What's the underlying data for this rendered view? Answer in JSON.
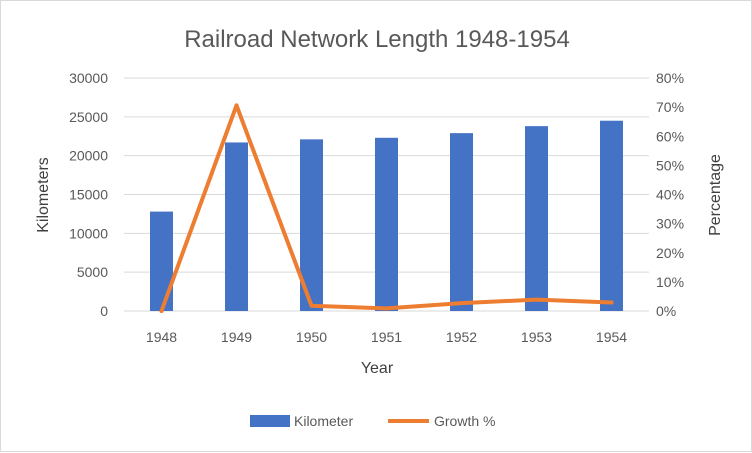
{
  "chart_data": {
    "type": "bar",
    "title": "Railroad Network Length 1948-1954",
    "xlabel": "Year",
    "ylabel": "Kilometers",
    "y2label": "Percentage",
    "categories": [
      "1948",
      "1949",
      "1950",
      "1951",
      "1952",
      "1953",
      "1954"
    ],
    "ylim": [
      0,
      30000
    ],
    "y_ticks": [
      "0",
      "5000",
      "10000",
      "15000",
      "20000",
      "25000",
      "30000"
    ],
    "y2lim": [
      0,
      80
    ],
    "y2_ticks": [
      "0%",
      "10%",
      "20%",
      "30%",
      "40%",
      "50%",
      "60%",
      "70%",
      "80%"
    ],
    "grid": true,
    "legend_position": "bottom",
    "series": [
      {
        "name": "Kilometer",
        "type": "bar",
        "axis": "left",
        "color": "#4472c4",
        "values": [
          12800,
          21700,
          22100,
          22300,
          22900,
          23800,
          24500
        ]
      },
      {
        "name": "Growth %",
        "type": "line",
        "axis": "right",
        "color": "#ed7d31",
        "values": [
          0,
          70.6,
          1.8,
          0.9,
          2.7,
          3.9,
          2.9
        ]
      }
    ]
  }
}
